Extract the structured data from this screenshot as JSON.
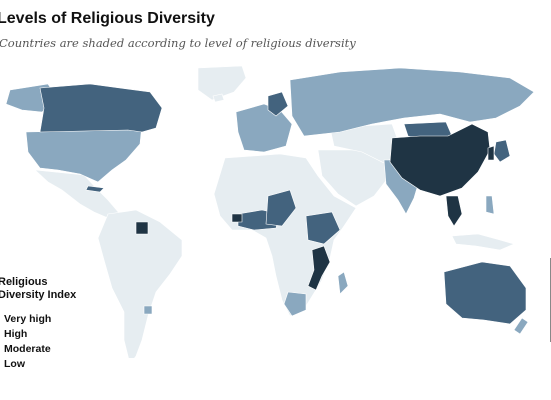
{
  "title": "Levels of Religious Diversity",
  "subtitle": "Countries are shaded according to level of religious diversity",
  "legend": {
    "title_line1": "Religious",
    "title_line2": "Diversity Index",
    "items": [
      {
        "label": "Very high",
        "color": "#1f3444"
      },
      {
        "label": "High",
        "color": "#43637e"
      },
      {
        "label": "Moderate",
        "color": "#8aa8bf"
      },
      {
        "label": "Low",
        "color": "#e6edf1"
      }
    ]
  },
  "colors": {
    "very_high": "#1f3444",
    "high": "#43637e",
    "moderate": "#8aa8bf",
    "low": "#e6edf1",
    "border": "#9aa3a9",
    "background": "#ffffff"
  },
  "regions": [
    {
      "name": "Alaska",
      "level": "moderate"
    },
    {
      "name": "Canada",
      "level": "high"
    },
    {
      "name": "Greenland",
      "level": "low"
    },
    {
      "name": "United States",
      "level": "moderate"
    },
    {
      "name": "Mexico",
      "level": "low"
    },
    {
      "name": "Cuba",
      "level": "high"
    },
    {
      "name": "Suriname",
      "level": "very_high"
    },
    {
      "name": "Brazil",
      "level": "low"
    },
    {
      "name": "Uruguay",
      "level": "moderate"
    },
    {
      "name": "Europe",
      "level": "moderate"
    },
    {
      "name": "Russia",
      "level": "moderate"
    },
    {
      "name": "China",
      "level": "very_high"
    },
    {
      "name": "Mongolia",
      "level": "high"
    },
    {
      "name": "Japan",
      "level": "high"
    },
    {
      "name": "Vietnam",
      "level": "very_high"
    },
    {
      "name": "South Korea",
      "level": "very_high"
    },
    {
      "name": "India",
      "level": "moderate"
    },
    {
      "name": "Nigeria",
      "level": "high"
    },
    {
      "name": "Mozambique",
      "level": "very_high"
    },
    {
      "name": "Australia",
      "level": "high"
    },
    {
      "name": "New Zealand",
      "level": "moderate"
    }
  ]
}
